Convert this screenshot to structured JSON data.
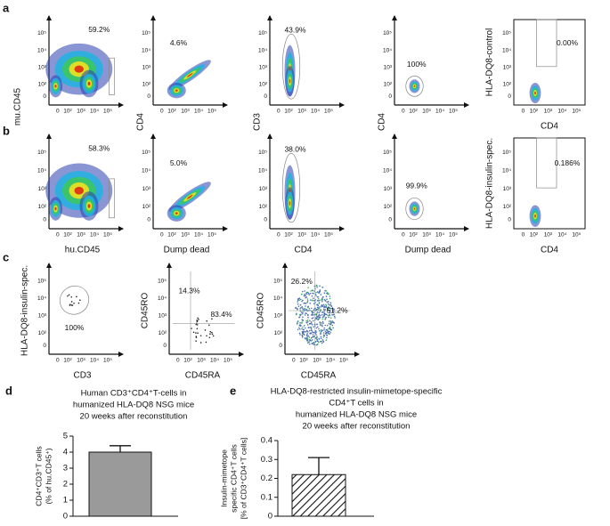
{
  "flow_ticks": [
    "0",
    "10²",
    "10³",
    "10⁴",
    "10⁵"
  ],
  "ab_y_labels": [
    "mu.CD45",
    "CD4",
    "CD3",
    "CD4"
  ],
  "a": {
    "letter": "a",
    "plots": [
      {
        "gates": [
          "59.2%"
        ]
      },
      {
        "gates": [
          "4.6%"
        ]
      },
      {
        "gates": [
          "43.9%"
        ]
      },
      {
        "gates": [
          "100%"
        ]
      },
      {
        "gates": [
          "0.00%"
        ],
        "y_label": "HLA-DQ8-control",
        "x_label": "CD4"
      }
    ]
  },
  "b": {
    "letter": "b",
    "plots": [
      {
        "gates": [
          "58.3%"
        ],
        "x_label": "hu.CD45"
      },
      {
        "gates": [
          "5.0%"
        ],
        "x_label": "Dump dead"
      },
      {
        "gates": [
          "38.0%"
        ],
        "x_label": "CD4"
      },
      {
        "gates": [
          "99.9%"
        ],
        "x_label": "Dump dead"
      },
      {
        "gates": [
          "0.186%"
        ],
        "y_label": "HLA-DQ8-insulin-spec.",
        "x_label": "CD4"
      }
    ]
  },
  "c": {
    "letter": "c",
    "plots": [
      {
        "gates": [
          "100%"
        ],
        "y_label": "HLA-DQ8-insulin-spec.",
        "x_label": "CD3"
      },
      {
        "gates": [
          "14.3%",
          "83.4%"
        ],
        "y_label": "CD45RO",
        "x_label": "CD45RA"
      },
      {
        "gates": [
          "26.2%",
          "51.2%"
        ],
        "y_label": "CD45RO",
        "x_label": "CD45RA"
      }
    ]
  },
  "d": {
    "letter": "d",
    "title": [
      "Human CD3⁺CD4⁺T-cells in",
      "humanized HLA-DQ8 NSG mice",
      "20 weeks after reconstitution"
    ],
    "y_label": [
      "CD4⁺CD3⁺T cells",
      "(% of hu.CD45⁺)"
    ],
    "ylim": [
      0,
      5
    ],
    "yticks": [
      0,
      1,
      2,
      3,
      4,
      5
    ],
    "value": 4,
    "error": 0.4
  },
  "e": {
    "letter": "e",
    "title": [
      "HLA-DQ8-restricted insulin-mimetope-specific",
      "CD4⁺T cells in",
      "humanized HLA-DQ8 NSG mice",
      "20 weeks after reconstitution"
    ],
    "y_label": [
      "Insulin-mimetope",
      "specific CD4⁺T cells",
      "[% of CD3⁺CD4⁺T cells]"
    ],
    "ylim": [
      0,
      0.4
    ],
    "yticks": [
      0,
      0.1,
      0.2,
      0.3,
      0.4
    ],
    "value": 0.22,
    "error": 0.09
  }
}
